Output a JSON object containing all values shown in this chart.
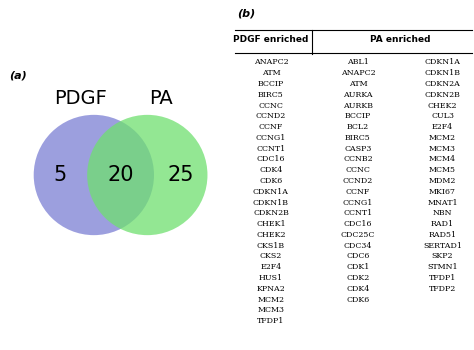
{
  "panel_a_label": "(a)",
  "panel_b_label": "(b)",
  "venn_left_label": "PDGF",
  "venn_right_label": "PA",
  "venn_left_only": "5",
  "venn_intersection": "20",
  "venn_right_only": "25",
  "venn_left_color": "#7B7FD4",
  "venn_right_color": "#6FE06F",
  "background_color": "#ffffff",
  "table_header_left": "PDGF enriched",
  "table_header_mid": "PA enriched",
  "pdgf_col": [
    "ANAPC2",
    "ATM",
    "BCCIP",
    "BIRC5",
    "CCNC",
    "CCND2",
    "CCNF",
    "CCNG1",
    "CCNT1",
    "CDC16",
    "CDK4",
    "CDK6",
    "CDKN1A",
    "CDKN1B",
    "CDKN2B",
    "CHEK1",
    "CHEK2",
    "CKS1B",
    "CKS2",
    "E2F4",
    "HUS1",
    "KPNA2",
    "MCM2",
    "MCM3",
    "TFDP1"
  ],
  "pa_col1": [
    "ABL1",
    "ANAPC2",
    "ATM",
    "AURKA",
    "AURKB",
    "BCCIP",
    "BCL2",
    "BIRC5",
    "CASP3",
    "CCNB2",
    "CCNC",
    "CCND2",
    "CCNF",
    "CCNG1",
    "CCNT1",
    "CDC16",
    "CDC25C",
    "CDC34",
    "CDC6",
    "CDK1",
    "CDK2",
    "CDK4",
    "CDK6",
    "",
    ""
  ],
  "pa_col2": [
    "CDKN1A",
    "CDKN1B",
    "CDKN2A",
    "CDKN2B",
    "CHEK2",
    "CUL3",
    "E2F4",
    "MCM2",
    "MCM3",
    "MCM4",
    "MCM5",
    "MDM2",
    "MKI67",
    "MNAT1",
    "NBN",
    "RAD1",
    "RAD51",
    "SERTAD1",
    "SKP2",
    "STMN1",
    "TFDP1",
    "TFDP2",
    "",
    "",
    ""
  ]
}
